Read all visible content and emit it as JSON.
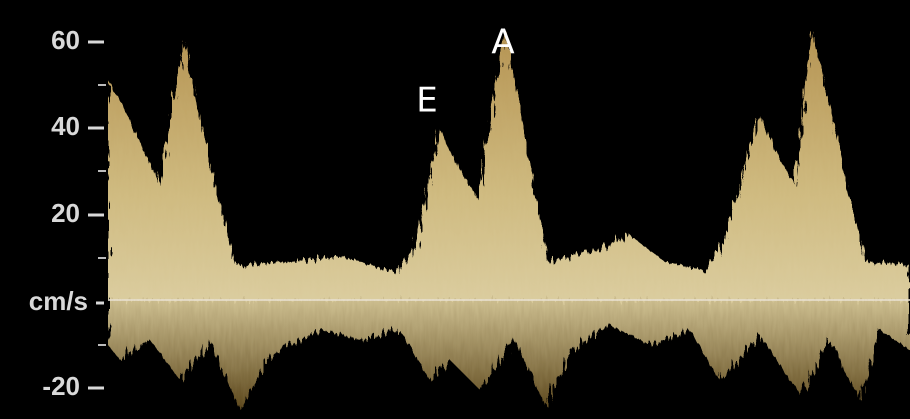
{
  "axis": {
    "ticks": [
      "60",
      "40",
      "20",
      "cm/s",
      "-20"
    ]
  },
  "annotations": [
    "E",
    "A"
  ]
}
